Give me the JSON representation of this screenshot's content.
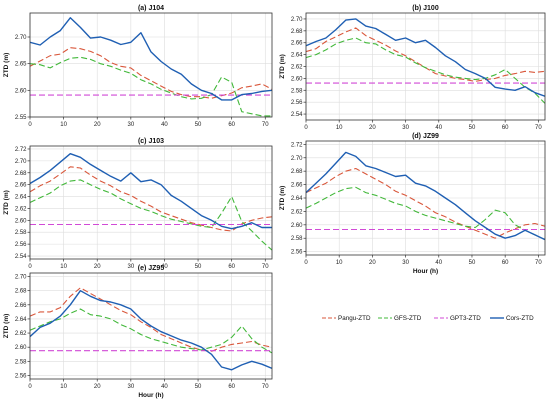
{
  "colors": {
    "pangu": "#d9573b",
    "gfs": "#42b83a",
    "gpt3": "#d14ad6",
    "cors": "#1f5fb3",
    "axis": "#333333",
    "grid": "#dddddd"
  },
  "legend": {
    "placement": "bottom-right",
    "entries": [
      "Pangu-ZTD",
      "GFS-ZTD",
      "GPT3-ZTD",
      "Cors-ZTD"
    ]
  },
  "chart_data": [
    {
      "type": "line",
      "title": "(a) J104",
      "xlabel": "",
      "ylabel": "ZTD (m)",
      "xlim": [
        0,
        72
      ],
      "ylim": [
        2.55,
        2.745
      ],
      "yticks": [
        "2.55",
        "2.60",
        "2.65",
        "2.70"
      ],
      "xticks": [
        "0",
        "10",
        "20",
        "30",
        "40",
        "50",
        "60",
        "70"
      ],
      "grid": true,
      "x": [
        0,
        3,
        6,
        9,
        12,
        15,
        18,
        21,
        24,
        27,
        30,
        33,
        36,
        39,
        42,
        45,
        48,
        51,
        54,
        57,
        60,
        63,
        66,
        69,
        72
      ],
      "series": [
        {
          "name": "Pangu-ZTD",
          "values": [
            2.645,
            2.655,
            2.665,
            2.668,
            2.68,
            2.678,
            2.673,
            2.665,
            2.652,
            2.645,
            2.642,
            2.628,
            2.618,
            2.608,
            2.598,
            2.592,
            2.588,
            2.588,
            2.585,
            2.59,
            2.595,
            2.605,
            2.608,
            2.612,
            2.602
          ]
        },
        {
          "name": "GFS-ZTD",
          "values": [
            2.65,
            2.648,
            2.642,
            2.652,
            2.66,
            2.662,
            2.658,
            2.65,
            2.645,
            2.638,
            2.632,
            2.62,
            2.612,
            2.602,
            2.595,
            2.588,
            2.584,
            2.585,
            2.592,
            2.625,
            2.615,
            2.56,
            2.556,
            2.552,
            2.552
          ]
        },
        {
          "name": "GPT3-ZTD",
          "values": [
            2.591,
            2.591,
            2.591,
            2.591,
            2.591,
            2.591,
            2.591,
            2.591,
            2.591,
            2.591,
            2.591,
            2.591,
            2.591,
            2.591,
            2.591,
            2.591,
            2.591,
            2.591,
            2.591,
            2.591,
            2.591,
            2.591,
            2.591,
            2.591,
            2.591
          ]
        },
        {
          "name": "Cors-ZTD",
          "values": [
            2.69,
            2.685,
            2.7,
            2.712,
            2.736,
            2.718,
            2.698,
            2.7,
            2.694,
            2.686,
            2.69,
            2.708,
            2.672,
            2.654,
            2.64,
            2.63,
            2.612,
            2.6,
            2.594,
            2.582,
            2.582,
            2.592,
            2.594,
            2.598,
            2.6
          ]
        }
      ]
    },
    {
      "type": "line",
      "title": "(b) J100",
      "xlabel": "",
      "ylabel": "ZTD (m)",
      "xlim": [
        0,
        72
      ],
      "ylim": [
        2.53,
        2.71
      ],
      "yticks": [
        "2.54",
        "2.56",
        "2.58",
        "2.60",
        "2.62",
        "2.64",
        "2.66",
        "2.68",
        "2.70"
      ],
      "xticks": [
        "0",
        "10",
        "20",
        "30",
        "40",
        "50",
        "60",
        "70"
      ],
      "grid": true,
      "x": [
        0,
        3,
        6,
        9,
        12,
        15,
        18,
        21,
        24,
        27,
        30,
        33,
        36,
        39,
        42,
        45,
        48,
        51,
        54,
        57,
        60,
        63,
        66,
        69,
        72
      ],
      "series": [
        {
          "name": "Pangu-ZTD",
          "values": [
            2.645,
            2.65,
            2.662,
            2.67,
            2.678,
            2.685,
            2.672,
            2.664,
            2.656,
            2.646,
            2.638,
            2.628,
            2.618,
            2.608,
            2.604,
            2.6,
            2.598,
            2.595,
            2.598,
            2.6,
            2.605,
            2.608,
            2.612,
            2.61,
            2.612
          ]
        },
        {
          "name": "GFS-ZTD",
          "values": [
            2.635,
            2.64,
            2.648,
            2.658,
            2.664,
            2.668,
            2.66,
            2.658,
            2.648,
            2.64,
            2.636,
            2.626,
            2.618,
            2.612,
            2.606,
            2.602,
            2.6,
            2.598,
            2.6,
            2.606,
            2.615,
            2.6,
            2.585,
            2.575,
            2.558
          ]
        },
        {
          "name": "GPT3-ZTD",
          "values": [
            2.592,
            2.592,
            2.592,
            2.592,
            2.592,
            2.592,
            2.592,
            2.592,
            2.592,
            2.592,
            2.592,
            2.592,
            2.592,
            2.592,
            2.592,
            2.592,
            2.592,
            2.592,
            2.592,
            2.592,
            2.592,
            2.592,
            2.592,
            2.592,
            2.592
          ]
        },
        {
          "name": "Cors-ZTD",
          "values": [
            2.655,
            2.662,
            2.668,
            2.682,
            2.698,
            2.7,
            2.688,
            2.684,
            2.674,
            2.664,
            2.668,
            2.66,
            2.664,
            2.652,
            2.638,
            2.628,
            2.615,
            2.608,
            2.6,
            2.585,
            2.582,
            2.58,
            2.586,
            2.576,
            2.57
          ]
        }
      ]
    },
    {
      "type": "line",
      "title": "(c) J103",
      "xlabel": "",
      "ylabel": "ZTD (m)",
      "xlim": [
        0,
        72
      ],
      "ylim": [
        2.535,
        2.725
      ],
      "yticks": [
        "2.54",
        "2.56",
        "2.58",
        "2.60",
        "2.62",
        "2.64",
        "2.66",
        "2.68",
        "2.70",
        "2.72"
      ],
      "xticks": [
        "0",
        "10",
        "20",
        "30",
        "40",
        "50",
        "60",
        "70"
      ],
      "grid": true,
      "x": [
        0,
        3,
        6,
        9,
        12,
        15,
        18,
        21,
        24,
        27,
        30,
        33,
        36,
        39,
        42,
        45,
        48,
        51,
        54,
        57,
        60,
        63,
        66,
        69,
        72
      ],
      "series": [
        {
          "name": "Pangu-ZTD",
          "values": [
            2.648,
            2.658,
            2.666,
            2.678,
            2.69,
            2.688,
            2.676,
            2.666,
            2.658,
            2.648,
            2.642,
            2.632,
            2.624,
            2.614,
            2.608,
            2.602,
            2.596,
            2.592,
            2.588,
            2.584,
            2.582,
            2.594,
            2.6,
            2.604,
            2.606
          ]
        },
        {
          "name": "GFS-ZTD",
          "values": [
            2.63,
            2.638,
            2.646,
            2.658,
            2.666,
            2.668,
            2.66,
            2.652,
            2.646,
            2.636,
            2.628,
            2.62,
            2.615,
            2.608,
            2.602,
            2.598,
            2.594,
            2.59,
            2.588,
            2.612,
            2.64,
            2.598,
            2.582,
            2.565,
            2.55
          ]
        },
        {
          "name": "GPT3-ZTD",
          "values": [
            2.593,
            2.593,
            2.593,
            2.593,
            2.593,
            2.593,
            2.593,
            2.593,
            2.593,
            2.593,
            2.593,
            2.593,
            2.593,
            2.593,
            2.593,
            2.593,
            2.593,
            2.593,
            2.593,
            2.593,
            2.593,
            2.593,
            2.593,
            2.593,
            2.593
          ]
        },
        {
          "name": "Cors-ZTD",
          "values": [
            2.662,
            2.672,
            2.684,
            2.698,
            2.712,
            2.706,
            2.694,
            2.684,
            2.674,
            2.666,
            2.68,
            2.665,
            2.668,
            2.66,
            2.642,
            2.632,
            2.62,
            2.608,
            2.6,
            2.59,
            2.586,
            2.59,
            2.596,
            2.588,
            2.588
          ]
        }
      ]
    },
    {
      "type": "line",
      "title": "(d) JZ99",
      "xlabel": "Hour (h)",
      "ylabel": "ZTD (m)",
      "xlim": [
        0,
        72
      ],
      "ylim": [
        2.555,
        2.725
      ],
      "yticks": [
        "2.56",
        "2.58",
        "2.60",
        "2.62",
        "2.64",
        "2.66",
        "2.68",
        "2.70",
        "2.72"
      ],
      "xticks": [
        "0",
        "10",
        "20",
        "30",
        "40",
        "50",
        "60",
        "70"
      ],
      "grid": true,
      "x": [
        0,
        3,
        6,
        9,
        12,
        15,
        18,
        21,
        24,
        27,
        30,
        33,
        36,
        39,
        42,
        45,
        48,
        51,
        54,
        57,
        60,
        63,
        66,
        69,
        72
      ],
      "series": [
        {
          "name": "Pangu-ZTD",
          "values": [
            2.648,
            2.655,
            2.662,
            2.672,
            2.68,
            2.684,
            2.676,
            2.668,
            2.66,
            2.65,
            2.644,
            2.636,
            2.628,
            2.618,
            2.612,
            2.604,
            2.598,
            2.592,
            2.586,
            2.58,
            2.588,
            2.594,
            2.6,
            2.602,
            2.598
          ]
        },
        {
          "name": "GFS-ZTD",
          "values": [
            2.625,
            2.632,
            2.64,
            2.648,
            2.654,
            2.656,
            2.648,
            2.644,
            2.638,
            2.632,
            2.628,
            2.62,
            2.614,
            2.61,
            2.606,
            2.602,
            2.598,
            2.596,
            2.608,
            2.622,
            2.618,
            2.6,
            2.592,
            2.585,
            2.578
          ]
        },
        {
          "name": "GPT3-ZTD",
          "values": [
            2.593,
            2.593,
            2.593,
            2.593,
            2.593,
            2.593,
            2.593,
            2.593,
            2.593,
            2.593,
            2.593,
            2.593,
            2.593,
            2.593,
            2.593,
            2.593,
            2.593,
            2.593,
            2.593,
            2.593,
            2.593,
            2.593,
            2.593,
            2.593,
            2.593
          ]
        },
        {
          "name": "Cors-ZTD",
          "values": [
            2.648,
            2.662,
            2.676,
            2.692,
            2.708,
            2.702,
            2.688,
            2.684,
            2.678,
            2.672,
            2.674,
            2.662,
            2.658,
            2.65,
            2.64,
            2.63,
            2.618,
            2.606,
            2.596,
            2.586,
            2.58,
            2.584,
            2.592,
            2.585,
            2.578
          ]
        }
      ]
    },
    {
      "type": "line",
      "title": "(e) JZ95",
      "xlabel": "Hour (h)",
      "ylabel": "ZTD (m)",
      "xlim": [
        0,
        72
      ],
      "ylim": [
        2.555,
        2.705
      ],
      "yticks": [
        "2.56",
        "2.58",
        "2.60",
        "2.62",
        "2.64",
        "2.66",
        "2.68",
        "2.70"
      ],
      "xticks": [
        "0",
        "10",
        "20",
        "30",
        "40",
        "50",
        "60",
        "70"
      ],
      "grid": true,
      "x": [
        0,
        3,
        6,
        9,
        12,
        15,
        18,
        21,
        24,
        27,
        30,
        33,
        36,
        39,
        42,
        45,
        48,
        51,
        54,
        57,
        60,
        63,
        66,
        69,
        72
      ],
      "series": [
        {
          "name": "Pangu-ZTD",
          "values": [
            2.644,
            2.65,
            2.65,
            2.656,
            2.672,
            2.684,
            2.676,
            2.668,
            2.66,
            2.652,
            2.646,
            2.636,
            2.628,
            2.618,
            2.612,
            2.606,
            2.6,
            2.596,
            2.594,
            2.6,
            2.604,
            2.606,
            2.608,
            2.603,
            2.6
          ]
        },
        {
          "name": "GFS-ZTD",
          "values": [
            2.624,
            2.63,
            2.636,
            2.64,
            2.648,
            2.654,
            2.646,
            2.644,
            2.64,
            2.632,
            2.626,
            2.618,
            2.612,
            2.608,
            2.604,
            2.6,
            2.598,
            2.596,
            2.6,
            2.604,
            2.614,
            2.63,
            2.612,
            2.6,
            2.592
          ]
        },
        {
          "name": "GPT3-ZTD",
          "values": [
            2.595,
            2.595,
            2.595,
            2.595,
            2.595,
            2.595,
            2.595,
            2.595,
            2.595,
            2.595,
            2.595,
            2.595,
            2.595,
            2.595,
            2.595,
            2.595,
            2.595,
            2.595,
            2.595,
            2.595,
            2.595,
            2.595,
            2.595,
            2.595,
            2.595
          ]
        },
        {
          "name": "Cors-ZTD",
          "values": [
            2.615,
            2.628,
            2.634,
            2.644,
            2.66,
            2.68,
            2.672,
            2.666,
            2.664,
            2.66,
            2.654,
            2.64,
            2.63,
            2.622,
            2.616,
            2.61,
            2.606,
            2.6,
            2.59,
            2.572,
            2.568,
            2.575,
            2.58,
            2.576,
            2.57
          ]
        }
      ]
    }
  ]
}
